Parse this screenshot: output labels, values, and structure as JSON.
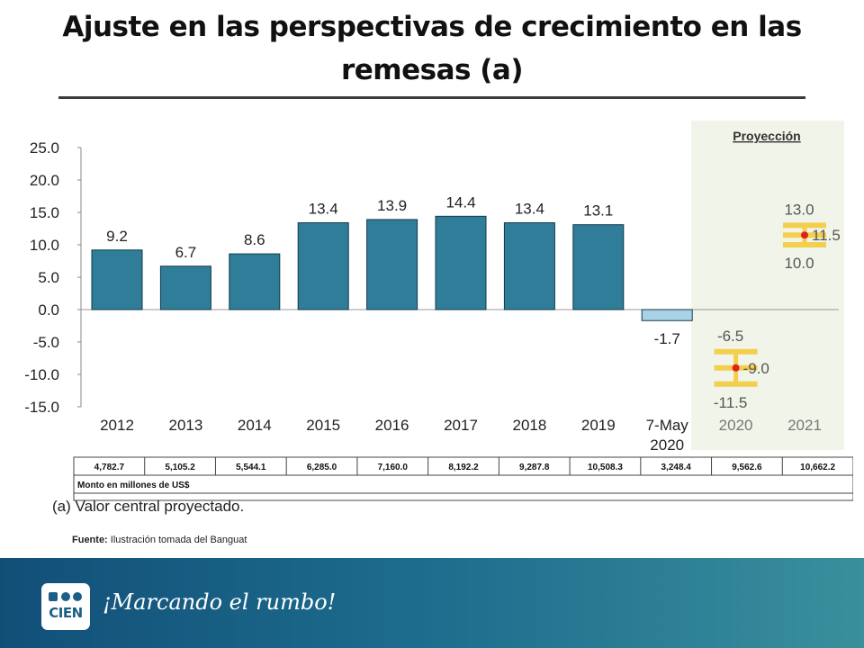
{
  "slide": {
    "title_line1": "Ajuste en las perspectivas de crecimiento en las",
    "title_line2": "remesas (a)",
    "source_label": "Fuente:",
    "source_text": "Ilustración tomada del Banguat",
    "slogan": "¡Marcando el rumbo!",
    "logo_text": "CIEN"
  },
  "chart_data": {
    "type": "bar",
    "title": "",
    "xlabel": "",
    "ylabel": "",
    "ylim": [
      -15,
      25
    ],
    "y_ticks": [
      "25.0",
      "20.0",
      "15.0",
      "10.0",
      "5.0",
      "0.0",
      "-5.0",
      "-10.0",
      "-15.0"
    ],
    "categories": [
      "2012",
      "2013",
      "2014",
      "2015",
      "2016",
      "2017",
      "2018",
      "2019",
      "7-May 2020"
    ],
    "values": [
      9.2,
      6.7,
      8.6,
      13.4,
      13.9,
      14.4,
      13.4,
      13.1,
      -1.7
    ],
    "value_labels": [
      "9.2",
      "6.7",
      "8.6",
      "13.4",
      "13.9",
      "14.4",
      "13.4",
      "13.1",
      "-1.7"
    ],
    "projection": {
      "label": "Proyección",
      "items": [
        {
          "category": "2020",
          "high": -6.5,
          "central": -9.0,
          "low": -11.5,
          "high_label": "-6.5",
          "central_label": "-9.0",
          "low_label": "-11.5"
        },
        {
          "category": "2021",
          "high": 13.0,
          "central": 11.5,
          "low": 10.0,
          "high_label": "13.0",
          "central_label": "11.5",
          "low_label": "10.0"
        }
      ]
    },
    "amounts": [
      "4,782.7",
      "5,105.2",
      "5,544.1",
      "6,285.0",
      "7,160.0",
      "8,192.2",
      "9,287.8",
      "10,508.3",
      "3,248.4",
      "9,562.6",
      "10,662.2"
    ],
    "amounts_caption": "Monto en millones de US$",
    "note": "(a) Valor central proyectado.",
    "colors": {
      "bar": "#2f7d98",
      "bar_border": "#123a4a",
      "bar_negative": "#a9d2e6",
      "projection_bg": "#f1f4e9",
      "range": "#f4cf4d",
      "central_point": "#e02020"
    }
  }
}
